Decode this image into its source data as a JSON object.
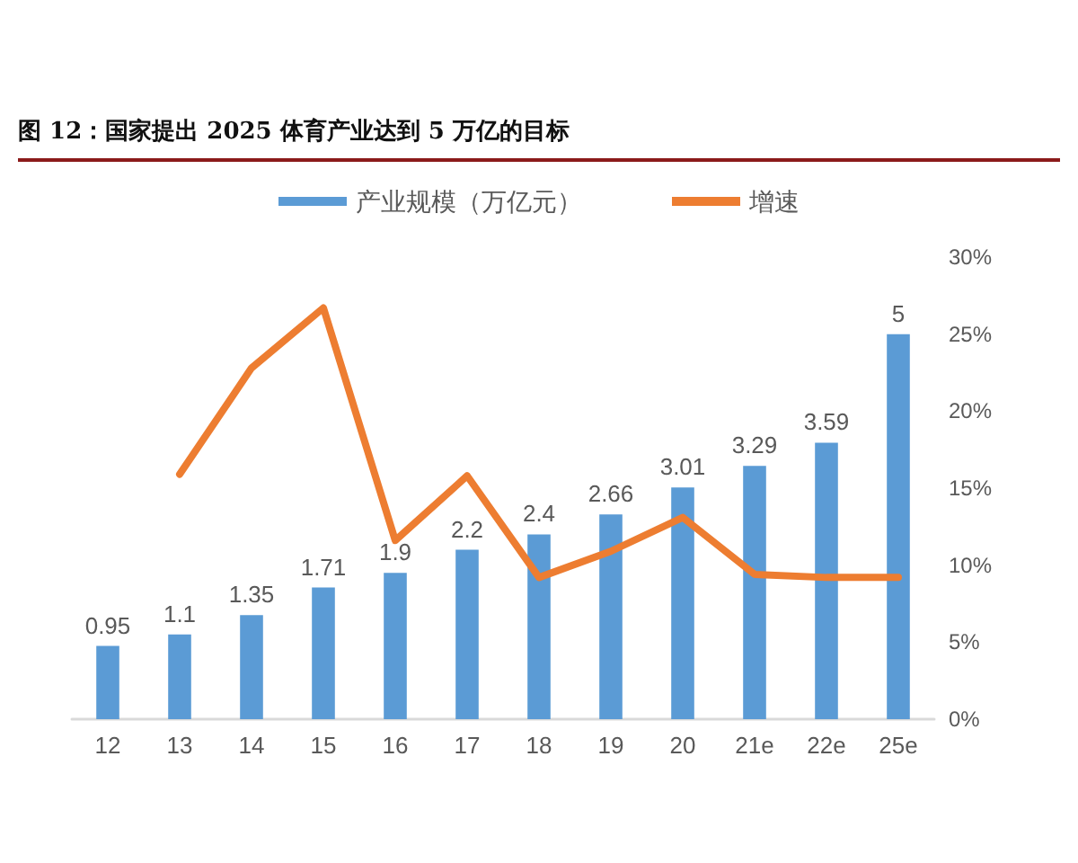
{
  "chart_data": {
    "type": "bar",
    "title": "图 12：国家提出 2025 体育产业达到 5 万亿的目标",
    "categories": [
      "12",
      "13",
      "14",
      "15",
      "16",
      "17",
      "18",
      "19",
      "20",
      "21e",
      "22e",
      "25e"
    ],
    "series": [
      {
        "name": "产业规模（万亿元）",
        "color": "#5b9bd5",
        "values": [
          0.95,
          1.1,
          1.35,
          1.71,
          1.9,
          2.2,
          2.4,
          2.66,
          3.01,
          3.29,
          3.59,
          5
        ],
        "data_labels": true
      },
      {
        "name": "增速",
        "type": "line",
        "axis": "y2",
        "color": "#ed7d31",
        "values": [
          null,
          15.9,
          22.8,
          26.7,
          11.6,
          15.8,
          9.2,
          10.9,
          13.1,
          9.4,
          9.2,
          9.2
        ]
      }
    ],
    "y2lim": [
      0,
      30
    ],
    "y2ticks": [
      {
        "value": 0,
        "label": "0%"
      },
      {
        "value": 5,
        "label": "5%"
      },
      {
        "value": 10,
        "label": "10%"
      },
      {
        "value": 15,
        "label": "15%"
      },
      {
        "value": 20,
        "label": "20%"
      },
      {
        "value": 25,
        "label": "25%"
      },
      {
        "value": 30,
        "label": "30%"
      }
    ],
    "legend": "top",
    "grid": false,
    "marker": "none",
    "line_style": "solid"
  }
}
